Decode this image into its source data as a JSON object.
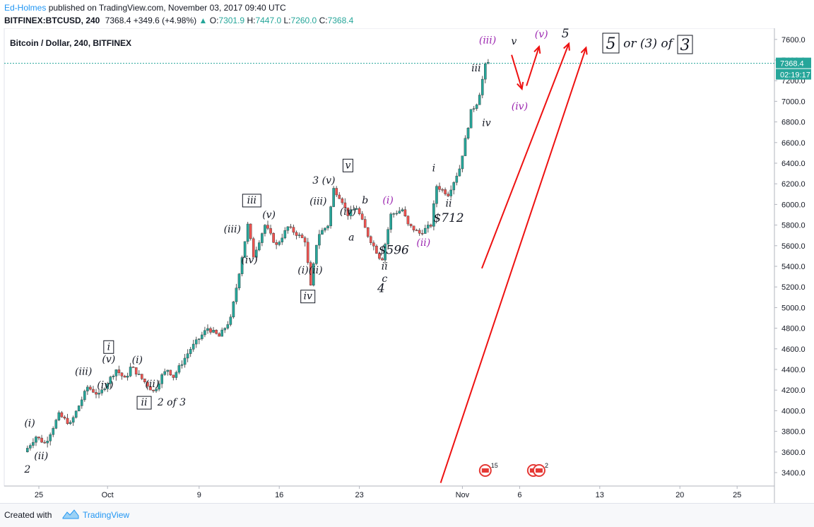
{
  "header": {
    "author": "Ed-Holmes",
    "published_text": "published on TradingView.com, November 03, 2017 09:40 UTC",
    "symbol": "BITFINEX:BTCUSD, 240",
    "last": "7368.4",
    "change": "+349.6 (+4.98%)",
    "open_label": "O:",
    "open_value": "7301.9",
    "high_label": "H:",
    "high_value": "7447.0",
    "low_label": "L:",
    "low_value": "7260.0",
    "close_label": "C:",
    "close_value": "7368.4"
  },
  "footer": {
    "created_with": "Created with",
    "brand": "TradingView"
  },
  "colors": {
    "up": "#26a69a",
    "down": "#ef5350",
    "candle_wick": "#555555",
    "last_price_line": "#26a69a",
    "arrow": "#ee1111",
    "purple_labels": "#9c27b0"
  },
  "chart_data": {
    "type": "candlestick",
    "title": "Bitcoin / Dollar, 240, BITFINEX",
    "ylim": [
      3300,
      7700
    ],
    "y_ticks": [
      "3400.0",
      "3600.0",
      "3800.0",
      "4000.0",
      "4200.0",
      "4400.0",
      "4600.0",
      "4800.0",
      "5000.0",
      "5200.0",
      "5400.0",
      "5600.0",
      "5800.0",
      "6000.0",
      "6200.0",
      "6400.0",
      "6600.0",
      "6800.0",
      "7000.0",
      "7200.0",
      "7400.0",
      "7600.0"
    ],
    "x_ticks": [
      "25",
      "Oct",
      "9",
      "16",
      "23",
      "Nov",
      "6",
      "13",
      "20",
      "25"
    ],
    "last_price": "7368.4",
    "countdown": "02:19:17",
    "price_path": [
      {
        "day": -1.0,
        "price": 3600
      },
      {
        "day": 0.0,
        "price": 3750
      },
      {
        "day": 0.8,
        "price": 3680
      },
      {
        "day": 2.0,
        "price": 3960
      },
      {
        "day": 3.0,
        "price": 3870
      },
      {
        "day": 4.5,
        "price": 4230
      },
      {
        "day": 5.5,
        "price": 4150
      },
      {
        "day": 7.0,
        "price": 4400
      },
      {
        "day": 7.8,
        "price": 4300
      },
      {
        "day": 8.3,
        "price": 4430
      },
      {
        "day": 9.0,
        "price": 4340
      },
      {
        "day": 10.3,
        "price": 4180
      },
      {
        "day": 11.0,
        "price": 4340
      },
      {
        "day": 11.5,
        "price": 4400
      },
      {
        "day": 12.0,
        "price": 4330
      },
      {
        "day": 13.5,
        "price": 4600
      },
      {
        "day": 15.0,
        "price": 4800
      },
      {
        "day": 16.0,
        "price": 4720
      },
      {
        "day": 17.0,
        "price": 4890
      },
      {
        "day": 18.5,
        "price": 5800
      },
      {
        "day": 19.0,
        "price": 5500
      },
      {
        "day": 20.0,
        "price": 5800
      },
      {
        "day": 21.0,
        "price": 5600
      },
      {
        "day": 22.0,
        "price": 5780
      },
      {
        "day": 23.5,
        "price": 5650
      },
      {
        "day": 24.0,
        "price": 5200
      },
      {
        "day": 24.6,
        "price": 5700
      },
      {
        "day": 25.5,
        "price": 5800
      },
      {
        "day": 26.0,
        "price": 6150
      },
      {
        "day": 26.7,
        "price": 6050
      },
      {
        "day": 27.2,
        "price": 5900
      },
      {
        "day": 28.0,
        "price": 5970
      },
      {
        "day": 29.0,
        "price": 5700
      },
      {
        "day": 30.2,
        "price": 5450
      },
      {
        "day": 31.0,
        "price": 5900
      },
      {
        "day": 32.0,
        "price": 5950
      },
      {
        "day": 32.5,
        "price": 5800
      },
      {
        "day": 33.5,
        "price": 5720
      },
      {
        "day": 34.5,
        "price": 5800
      },
      {
        "day": 35.0,
        "price": 6180
      },
      {
        "day": 36.0,
        "price": 6100
      },
      {
        "day": 37.0,
        "price": 6350
      },
      {
        "day": 38.0,
        "price": 6900
      },
      {
        "day": 38.6,
        "price": 7000
      },
      {
        "day": 39.3,
        "price": 7370
      }
    ],
    "annotations": [
      {
        "text": "(i)",
        "day": -0.8,
        "price": 3850,
        "color": "#131722"
      },
      {
        "text": "(ii)",
        "day": 0.2,
        "price": 3530,
        "color": "#131722"
      },
      {
        "text": "2",
        "day": -1.0,
        "price": 3400,
        "color": "#131722"
      },
      {
        "text": "(iii)",
        "day": 3.9,
        "price": 4350,
        "color": "#131722"
      },
      {
        "text": "(v)",
        "day": 6.1,
        "price": 4470,
        "color": "#131722"
      },
      {
        "text": "(iv)",
        "day": 5.8,
        "price": 4220,
        "color": "#131722"
      },
      {
        "text": "i",
        "day": 6.1,
        "price": 4590,
        "color": "#131722",
        "boxed": true
      },
      {
        "text": "(i)",
        "day": 8.6,
        "price": 4460,
        "color": "#131722"
      },
      {
        "text": "(ii)",
        "day": 9.9,
        "price": 4230,
        "color": "#131722"
      },
      {
        "text": "ii",
        "day": 9.2,
        "price": 4050,
        "color": "#131722",
        "boxed": true
      },
      {
        "text": "2 of 3",
        "day": 11.6,
        "price": 4050,
        "color": "#131722"
      },
      {
        "text": "(iii)",
        "day": 16.9,
        "price": 5730,
        "color": "#131722"
      },
      {
        "text": "iii",
        "day": 18.6,
        "price": 6010,
        "color": "#131722",
        "boxed": true
      },
      {
        "text": "(v)",
        "day": 20.1,
        "price": 5870,
        "color": "#131722"
      },
      {
        "text": "(iv)",
        "day": 18.4,
        "price": 5430,
        "color": "#131722"
      },
      {
        "text": "(i)(ii)",
        "day": 23.7,
        "price": 5330,
        "color": "#131722"
      },
      {
        "text": "iv",
        "day": 23.5,
        "price": 5080,
        "color": "#131722",
        "boxed": true
      },
      {
        "text": "(iii)",
        "day": 24.4,
        "price": 6000,
        "color": "#131722"
      },
      {
        "text": "3  (v)",
        "day": 24.9,
        "price": 6200,
        "color": "#131722"
      },
      {
        "text": "v",
        "day": 27.0,
        "price": 6350,
        "color": "#131722",
        "boxed": true
      },
      {
        "text": "(iv)",
        "day": 27.0,
        "price": 5900,
        "color": "#131722"
      },
      {
        "text": "b",
        "day": 28.5,
        "price": 6010,
        "color": "#131722"
      },
      {
        "text": "a",
        "day": 27.3,
        "price": 5650,
        "color": "#131722"
      },
      {
        "text": "(i)",
        "day": 30.5,
        "price": 6010,
        "color": "#9c27b0"
      },
      {
        "text": "$596",
        "day": 31.0,
        "price": 5520,
        "color": "#131722"
      },
      {
        "text": "ii",
        "day": 30.2,
        "price": 5370,
        "color": "#131722"
      },
      {
        "text": "c",
        "day": 30.2,
        "price": 5250,
        "color": "#131722"
      },
      {
        "text": "4",
        "day": 29.9,
        "price": 5150,
        "color": "#131722"
      },
      {
        "text": "(ii)",
        "day": 33.6,
        "price": 5600,
        "color": "#9c27b0"
      },
      {
        "text": "i",
        "day": 34.5,
        "price": 6320,
        "color": "#131722"
      },
      {
        "text": "ii",
        "day": 35.8,
        "price": 5980,
        "color": "#131722"
      },
      {
        "text": "$712",
        "day": 35.8,
        "price": 5830,
        "color": "#131722"
      },
      {
        "text": "iii",
        "day": 38.2,
        "price": 7290,
        "color": "#131722"
      },
      {
        "text": "(iii)",
        "day": 39.2,
        "price": 7560,
        "color": "#9c27b0"
      },
      {
        "text": "iv",
        "day": 39.1,
        "price": 6760,
        "color": "#131722"
      },
      {
        "text": "v",
        "day": 41.5,
        "price": 7550,
        "color": "#131722"
      },
      {
        "text": "(iv)",
        "day": 42.0,
        "price": 6920,
        "color": "#9c27b0"
      },
      {
        "text": "(v)",
        "day": 43.9,
        "price": 7620,
        "color": "#9c27b0"
      },
      {
        "text": "5",
        "day": 46.0,
        "price": 7620,
        "color": "#131722"
      }
    ],
    "legend_note": {
      "left_box": "5",
      "middle": "or (3) of",
      "right_box": "3"
    },
    "red_arrows": [
      {
        "from_day": 41.3,
        "from_price": 7450,
        "to_day": 42.2,
        "to_price": 7120
      },
      {
        "from_day": 42.6,
        "from_price": 7150,
        "to_day": 43.7,
        "to_price": 7530
      },
      {
        "from_day": 38.7,
        "from_price": 5380,
        "to_day": 46.3,
        "to_price": 7560
      },
      {
        "from_day": 35.1,
        "from_price": 3300,
        "to_day": 47.8,
        "to_price": 7520
      }
    ],
    "event_icons": [
      {
        "day": 39.0,
        "count": "15"
      },
      {
        "day": 43.2,
        "count": ""
      },
      {
        "day": 43.7,
        "count": "2"
      }
    ]
  }
}
